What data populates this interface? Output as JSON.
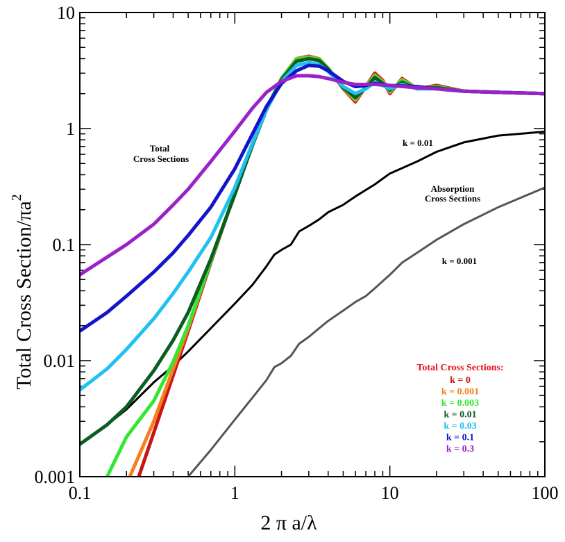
{
  "chart_data": {
    "type": "line",
    "title": "",
    "xlabel": "2 π a/λ",
    "ylabel_main": "Total Cross Section/πa",
    "ylabel_sup": "2",
    "xscale": "log",
    "yscale": "log",
    "xlim": [
      0.1,
      100
    ],
    "ylim": [
      0.001,
      10
    ],
    "x_ticks": [
      0.1,
      1,
      10,
      100
    ],
    "x_tick_labels": [
      "0.1",
      "1",
      "10",
      "100"
    ],
    "y_ticks": [
      0.001,
      0.01,
      0.1,
      1,
      10
    ],
    "y_tick_labels": [
      "0.001",
      "0.01",
      "0.1",
      "1",
      "10"
    ],
    "grid": false,
    "legend_title": "Total Cross Sections:",
    "legend_title_color": "#e8141c",
    "legend_placement": "bottom-right",
    "annotations": {
      "total_label_line1": "Total",
      "total_label_line2": "Cross Sections",
      "absorption_label_line1": "Absorption",
      "absorption_label_line2": "Cross Sections",
      "k001_label": "k = 0.01",
      "k0001_label": "k = 0.001"
    },
    "series": [
      {
        "name": "k = 0",
        "color": "#cc1414",
        "group": "total",
        "x": [
          0.24,
          0.3,
          0.4,
          0.5,
          0.7,
          1.0,
          1.3,
          1.6,
          2.0,
          2.5,
          3.0,
          3.5,
          4.0,
          5.0,
          6.0,
          7.0,
          8.0,
          9.0,
          10,
          12,
          15,
          20,
          30,
          50,
          100
        ],
        "y": [
          0.001,
          0.0024,
          0.0075,
          0.018,
          0.07,
          0.28,
          0.75,
          1.5,
          2.7,
          4.0,
          4.2,
          4.0,
          3.3,
          2.2,
          1.7,
          2.3,
          3.0,
          2.6,
          2.0,
          2.7,
          2.2,
          2.35,
          2.1,
          2.05,
          2.0
        ]
      },
      {
        "name": "k = 0.001",
        "color": "#f4801f",
        "group": "total",
        "x": [
          0.21,
          0.3,
          0.4,
          0.5,
          0.7,
          1.0,
          1.3,
          1.6,
          2.0,
          2.5,
          3.0,
          3.5,
          4.0,
          5.0,
          6.0,
          7.0,
          8.0,
          9.0,
          10,
          12,
          15,
          20,
          30,
          50,
          100
        ],
        "y": [
          0.001,
          0.003,
          0.0085,
          0.019,
          0.072,
          0.28,
          0.75,
          1.5,
          2.7,
          4.0,
          4.15,
          4.0,
          3.3,
          2.2,
          1.75,
          2.3,
          2.9,
          2.55,
          2.05,
          2.65,
          2.2,
          2.3,
          2.1,
          2.05,
          2.0
        ]
      },
      {
        "name": "k = 0.003",
        "color": "#33e633",
        "group": "total",
        "x": [
          0.15,
          0.2,
          0.3,
          0.4,
          0.5,
          0.7,
          1.0,
          1.3,
          1.6,
          2.0,
          2.5,
          3.0,
          3.5,
          4.0,
          5.0,
          6.0,
          7.0,
          8.0,
          9.0,
          10,
          12,
          15,
          20,
          30,
          50,
          100
        ],
        "y": [
          0.001,
          0.0022,
          0.0045,
          0.0098,
          0.02,
          0.072,
          0.28,
          0.75,
          1.5,
          2.7,
          3.95,
          4.1,
          3.95,
          3.3,
          2.25,
          1.8,
          2.3,
          2.85,
          2.5,
          2.1,
          2.6,
          2.2,
          2.3,
          2.1,
          2.05,
          2.0
        ]
      },
      {
        "name": "k = 0.01",
        "color": "#0b5e22",
        "group": "total",
        "x": [
          0.1,
          0.15,
          0.2,
          0.3,
          0.4,
          0.5,
          0.7,
          1.0,
          1.3,
          1.6,
          2.0,
          2.5,
          3.0,
          3.5,
          4.0,
          5.0,
          6.0,
          7.0,
          8.0,
          9.0,
          10,
          12,
          15,
          20,
          30,
          50,
          100
        ],
        "y": [
          0.0019,
          0.0028,
          0.004,
          0.0082,
          0.015,
          0.026,
          0.075,
          0.27,
          0.72,
          1.45,
          2.65,
          3.8,
          4.0,
          3.85,
          3.25,
          2.25,
          1.85,
          2.25,
          2.75,
          2.45,
          2.15,
          2.5,
          2.2,
          2.25,
          2.1,
          2.05,
          2.0
        ]
      },
      {
        "name": "k = 0.03",
        "color": "#1ec1ef",
        "group": "total",
        "x": [
          0.1,
          0.15,
          0.2,
          0.3,
          0.4,
          0.5,
          0.7,
          1.0,
          1.3,
          1.6,
          2.0,
          2.5,
          3.0,
          3.5,
          4.0,
          5.0,
          6.0,
          7.0,
          8.0,
          9.0,
          10,
          12,
          15,
          20,
          30,
          50,
          100
        ],
        "y": [
          0.0056,
          0.0085,
          0.0125,
          0.023,
          0.038,
          0.058,
          0.115,
          0.31,
          0.75,
          1.45,
          2.55,
          3.5,
          3.7,
          3.55,
          3.1,
          2.3,
          2.0,
          2.2,
          2.5,
          2.35,
          2.2,
          2.4,
          2.2,
          2.2,
          2.1,
          2.05,
          2.0
        ]
      },
      {
        "name": "k = 0.1",
        "color": "#1414c8",
        "group": "total",
        "x": [
          0.1,
          0.15,
          0.2,
          0.3,
          0.4,
          0.5,
          0.7,
          1.0,
          1.3,
          1.6,
          2.0,
          2.5,
          3.0,
          3.5,
          4.0,
          5.0,
          6.0,
          7.0,
          8.0,
          10,
          15,
          20,
          30,
          50,
          100
        ],
        "y": [
          0.018,
          0.026,
          0.036,
          0.058,
          0.085,
          0.12,
          0.21,
          0.45,
          0.9,
          1.55,
          2.45,
          3.15,
          3.5,
          3.45,
          3.15,
          2.55,
          2.3,
          2.35,
          2.45,
          2.35,
          2.3,
          2.2,
          2.1,
          2.05,
          2.0
        ]
      },
      {
        "name": "k = 0.3",
        "color": "#9a22c8",
        "group": "total",
        "x": [
          0.1,
          0.15,
          0.2,
          0.3,
          0.4,
          0.5,
          0.7,
          1.0,
          1.3,
          1.6,
          2.0,
          2.5,
          3.0,
          3.5,
          4.0,
          5.0,
          6.0,
          8.0,
          10,
          15,
          20,
          30,
          50,
          100
        ],
        "y": [
          0.055,
          0.078,
          0.1,
          0.15,
          0.22,
          0.3,
          0.52,
          0.95,
          1.5,
          2.05,
          2.55,
          2.85,
          2.85,
          2.8,
          2.7,
          2.5,
          2.4,
          2.4,
          2.35,
          2.25,
          2.2,
          2.1,
          2.05,
          2.0
        ]
      },
      {
        "name": "k = 0.01 (absorption)",
        "color": "#000000",
        "group": "absorption",
        "x": [
          0.1,
          0.15,
          0.2,
          0.3,
          0.4,
          0.5,
          0.7,
          1.0,
          1.3,
          1.6,
          1.8,
          2.0,
          2.3,
          2.6,
          3.0,
          3.5,
          4.0,
          5.0,
          6.0,
          8.0,
          10,
          15,
          20,
          30,
          50,
          100
        ],
        "y": [
          0.0019,
          0.0028,
          0.0038,
          0.0065,
          0.009,
          0.012,
          0.019,
          0.031,
          0.045,
          0.065,
          0.082,
          0.09,
          0.1,
          0.13,
          0.145,
          0.165,
          0.19,
          0.22,
          0.26,
          0.33,
          0.41,
          0.52,
          0.63,
          0.76,
          0.87,
          0.94
        ]
      },
      {
        "name": "k = 0.001 (absorption)",
        "color": "#555555",
        "group": "absorption",
        "x": [
          0.5,
          0.7,
          1.0,
          1.3,
          1.6,
          1.8,
          2.0,
          2.3,
          2.6,
          3.0,
          3.5,
          4.0,
          5.0,
          6.0,
          7.0,
          8.0,
          10,
          12,
          15,
          20,
          30,
          50,
          100
        ],
        "y": [
          0.001,
          0.0017,
          0.0031,
          0.0048,
          0.0068,
          0.0088,
          0.0095,
          0.011,
          0.014,
          0.016,
          0.019,
          0.022,
          0.027,
          0.032,
          0.036,
          0.042,
          0.055,
          0.07,
          0.085,
          0.11,
          0.15,
          0.21,
          0.31
        ]
      }
    ]
  }
}
